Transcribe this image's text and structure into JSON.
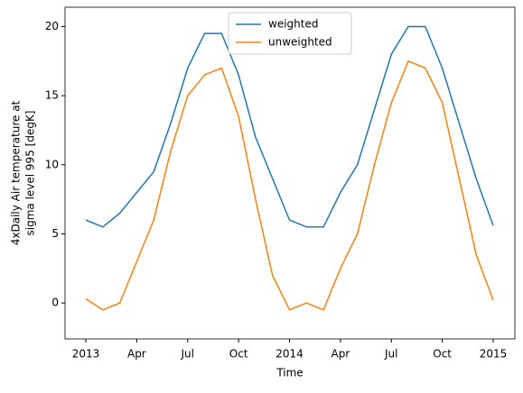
{
  "chart_data": {
    "type": "line",
    "xlabel": "Time",
    "ylabel": [
      "4xDaily Air temperature at",
      "sigma level 995 [degK]"
    ],
    "x": [
      "2013-01",
      "2013-02",
      "2013-03",
      "2013-04",
      "2013-05",
      "2013-06",
      "2013-07",
      "2013-08",
      "2013-09",
      "2013-10",
      "2013-11",
      "2013-12",
      "2014-01",
      "2014-02",
      "2014-03",
      "2014-04",
      "2014-05",
      "2014-06",
      "2014-07",
      "2014-08",
      "2014-09",
      "2014-10",
      "2014-11",
      "2014-12",
      "2015-01"
    ],
    "series": [
      {
        "name": "weighted",
        "color": "#1f77b4",
        "values": [
          6,
          5.5,
          6.5,
          8,
          9.5,
          13,
          17,
          19.5,
          19.5,
          16.5,
          12,
          9,
          6,
          5.5,
          5.5,
          8,
          10,
          14,
          18,
          20,
          20,
          17,
          13,
          9,
          5.6
        ]
      },
      {
        "name": "unweighted",
        "color": "#ff7f0e",
        "values": [
          0.3,
          -0.5,
          0,
          3,
          6,
          11,
          15,
          16.5,
          17,
          13.5,
          7.5,
          2,
          -0.5,
          0,
          -0.5,
          2.5,
          5,
          10,
          14.5,
          17.5,
          17,
          14.5,
          9,
          3.5,
          0.2
        ]
      }
    ],
    "xticks": [
      {
        "value": "2013-01",
        "label": "2013"
      },
      {
        "value": "2013-04",
        "label": "Apr"
      },
      {
        "value": "2013-07",
        "label": "Jul"
      },
      {
        "value": "2013-10",
        "label": "Oct"
      },
      {
        "value": "2014-01",
        "label": "2014"
      },
      {
        "value": "2014-04",
        "label": "Apr"
      },
      {
        "value": "2014-07",
        "label": "Jul"
      },
      {
        "value": "2014-10",
        "label": "Oct"
      },
      {
        "value": "2015-01",
        "label": "2015"
      }
    ],
    "ylim": [
      -2.6,
      21.4
    ],
    "yticks": [
      0,
      5,
      10,
      15,
      20
    ],
    "legend": "upper center"
  }
}
